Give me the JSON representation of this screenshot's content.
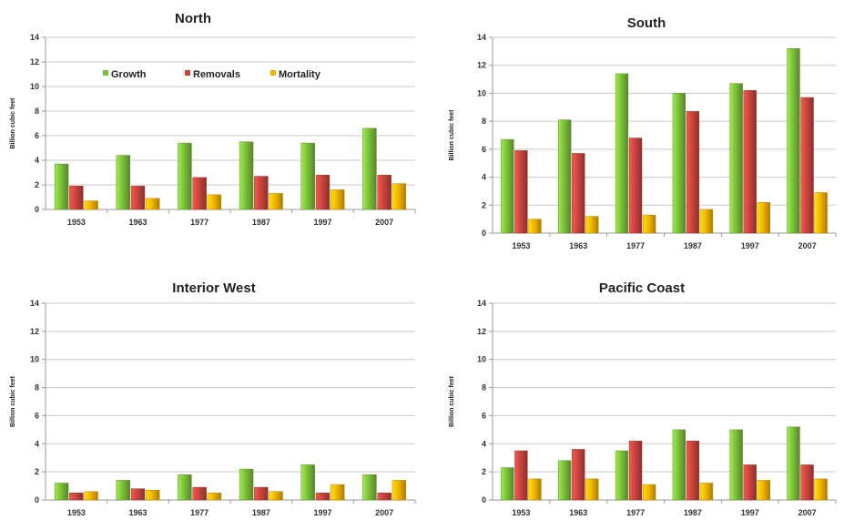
{
  "chart_data": [
    {
      "type": "bar",
      "title": "North",
      "ylabel": "Billion cubic feet",
      "ylim": [
        0,
        14
      ],
      "yticks": [
        0,
        2,
        4,
        6,
        8,
        10,
        12,
        14
      ],
      "categories": [
        "1953",
        "1963",
        "1977",
        "1987",
        "1997",
        "2007"
      ],
      "grid": true,
      "legend": "top-left",
      "series": [
        {
          "name": "Growth",
          "color": "#7cbf3a",
          "values": [
            3.7,
            4.4,
            5.4,
            5.5,
            5.4,
            6.6
          ]
        },
        {
          "name": "Removals",
          "color": "#c8453d",
          "values": [
            1.9,
            1.9,
            2.6,
            2.7,
            2.8,
            2.8
          ]
        },
        {
          "name": "Mortality",
          "color": "#f2b400",
          "values": [
            0.7,
            0.9,
            1.2,
            1.3,
            1.6,
            2.1
          ]
        }
      ]
    },
    {
      "type": "bar",
      "title": "South",
      "ylabel": "Billion cubic feet",
      "ylim": [
        0,
        14
      ],
      "yticks": [
        0,
        2,
        4,
        6,
        8,
        10,
        12,
        14
      ],
      "categories": [
        "1953",
        "1963",
        "1977",
        "1987",
        "1997",
        "2007"
      ],
      "grid": true,
      "series": [
        {
          "name": "Growth",
          "color": "#7cbf3a",
          "values": [
            6.7,
            8.1,
            11.4,
            10.0,
            10.7,
            13.2
          ]
        },
        {
          "name": "Removals",
          "color": "#c8453d",
          "values": [
            5.9,
            5.7,
            6.8,
            8.7,
            10.2,
            9.7
          ]
        },
        {
          "name": "Mortality",
          "color": "#f2b400",
          "values": [
            1.0,
            1.2,
            1.3,
            1.7,
            2.2,
            2.9
          ]
        }
      ]
    },
    {
      "type": "bar",
      "title": "Interior West",
      "ylabel": "Billion cubic feet",
      "ylim": [
        0,
        14
      ],
      "yticks": [
        0,
        2,
        4,
        6,
        8,
        10,
        12,
        14
      ],
      "categories": [
        "1953",
        "1963",
        "1977",
        "1987",
        "1997",
        "2007"
      ],
      "grid": true,
      "series": [
        {
          "name": "Growth",
          "color": "#7cbf3a",
          "values": [
            1.2,
            1.4,
            1.8,
            2.2,
            2.5,
            1.8
          ]
        },
        {
          "name": "Removals",
          "color": "#c8453d",
          "values": [
            0.5,
            0.8,
            0.9,
            0.9,
            0.5,
            0.5
          ]
        },
        {
          "name": "Mortality",
          "color": "#f2b400",
          "values": [
            0.6,
            0.7,
            0.5,
            0.6,
            1.1,
            1.4
          ]
        }
      ]
    },
    {
      "type": "bar",
      "title": "Pacific Coast",
      "ylabel": "Billion cubic feet",
      "ylim": [
        0,
        14
      ],
      "yticks": [
        0,
        2,
        4,
        6,
        8,
        10,
        12,
        14
      ],
      "categories": [
        "1953",
        "1963",
        "1977",
        "1987",
        "1997",
        "2007"
      ],
      "grid": true,
      "series": [
        {
          "name": "Growth",
          "color": "#7cbf3a",
          "values": [
            2.3,
            2.8,
            3.5,
            5.0,
            5.0,
            5.2
          ]
        },
        {
          "name": "Removals",
          "color": "#c8453d",
          "values": [
            3.5,
            3.6,
            4.2,
            4.2,
            2.5,
            2.5
          ]
        },
        {
          "name": "Mortality",
          "color": "#f2b400",
          "values": [
            1.5,
            1.5,
            1.1,
            1.2,
            1.4,
            1.5
          ]
        }
      ]
    }
  ]
}
